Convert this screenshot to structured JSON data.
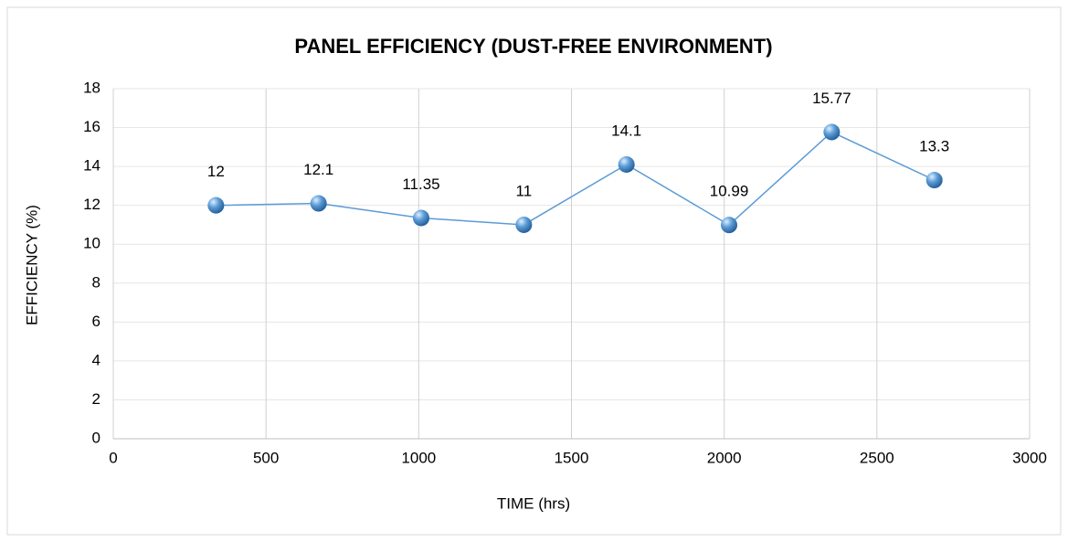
{
  "chart_data": {
    "type": "line",
    "title": "PANEL EFFICIENCY (DUST-FREE ENVIRONMENT)",
    "x_label": "TIME (hrs)",
    "y_label": "EFFICIENCY  (%)",
    "x": [
      336,
      672,
      1008,
      1344,
      1680,
      2016,
      2352,
      2688
    ],
    "values": [
      12,
      12.1,
      11.35,
      11,
      14.1,
      10.99,
      15.77,
      13.3
    ],
    "color": "#5b9bd5",
    "xlim": [
      0,
      3000
    ],
    "xticks": [
      0,
      500,
      1000,
      1500,
      2000,
      2500,
      3000
    ],
    "ylim": [
      0,
      18
    ],
    "yticks": [
      0,
      2,
      4,
      6,
      8,
      10,
      12,
      14,
      16,
      18
    ],
    "grid": true
  }
}
